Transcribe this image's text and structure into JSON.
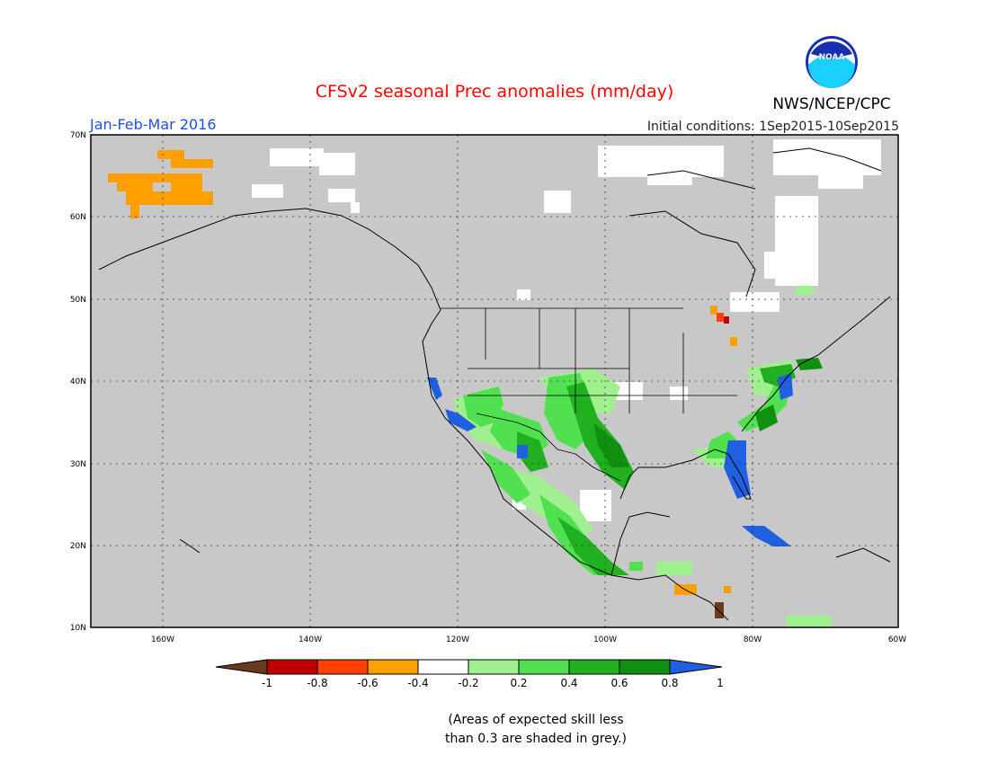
{
  "title": "CFSv2 seasonal Prec anomalies (mm/day)",
  "period": "Jan-Feb-Mar 2016",
  "initial_conditions": "Initial conditions: 1Sep2015-10Sep2015",
  "agency": "NWS/NCEP/CPC",
  "logo_text": "NOAA",
  "lat_labels": [
    "70N",
    "60N",
    "50N",
    "40N",
    "30N",
    "20N",
    "10N"
  ],
  "lon_labels": [
    "160W",
    "140W",
    "120W",
    "100W",
    "80W",
    "60W"
  ],
  "colorbar": {
    "labels": [
      "-1",
      "-0.8",
      "-0.6",
      "-0.4",
      "-0.2",
      "0.2",
      "0.4",
      "0.6",
      "0.8",
      "1"
    ],
    "colors": [
      "#6b3a1e",
      "#c00000",
      "#ff4000",
      "#ffa000",
      "#ffffff",
      "#a0f090",
      "#50e050",
      "#20b020",
      "#109010",
      "#2060e0"
    ]
  },
  "footnote": [
    "(Areas of expected skill less",
    "than 0.3 are shaded in grey.)"
  ],
  "colors": {
    "title": "#ff0000",
    "period": "#2050e0",
    "land_grey": "#c8c8c8",
    "border": "#000000"
  }
}
